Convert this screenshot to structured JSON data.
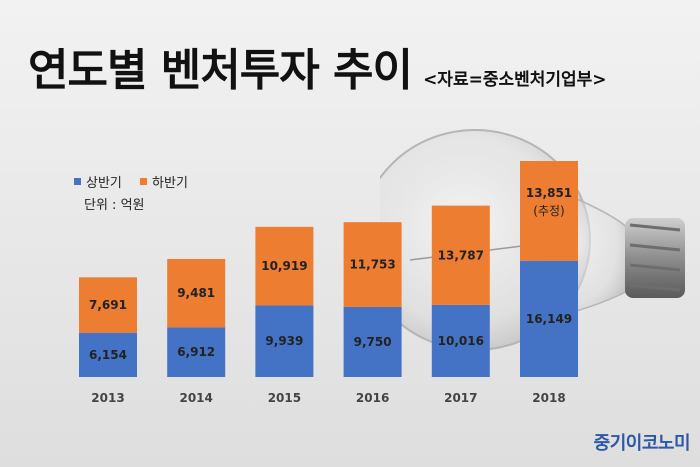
{
  "title": "연도별 벤처투자 추이",
  "source": "<자료=중소벤처기업부>",
  "unit": "단위 : 억원",
  "brand": "중기이코노미",
  "colors": {
    "first_half": "#4472c4",
    "second_half": "#ed7d31"
  },
  "chart_data": {
    "type": "bar",
    "stacked": true,
    "categories": [
      "2013",
      "2014",
      "2015",
      "2016",
      "2017",
      "2018"
    ],
    "series": [
      {
        "name": "상반기",
        "values": [
          6154,
          6912,
          9939,
          9750,
          10016,
          16149
        ],
        "labels": [
          "6,154",
          "6,912",
          "9,939",
          "9,750",
          "10,016",
          "16,149"
        ]
      },
      {
        "name": "하반기",
        "values": [
          7691,
          9481,
          10919,
          11753,
          13787,
          13851
        ],
        "labels": [
          "7,691",
          "9,481",
          "10,919",
          "11,753",
          "13,787",
          "13,851"
        ]
      }
    ],
    "annotations": [
      {
        "category": "2018",
        "series": "하반기",
        "text": "(추정)"
      }
    ],
    "legend_position": "top-left",
    "grid": false
  }
}
